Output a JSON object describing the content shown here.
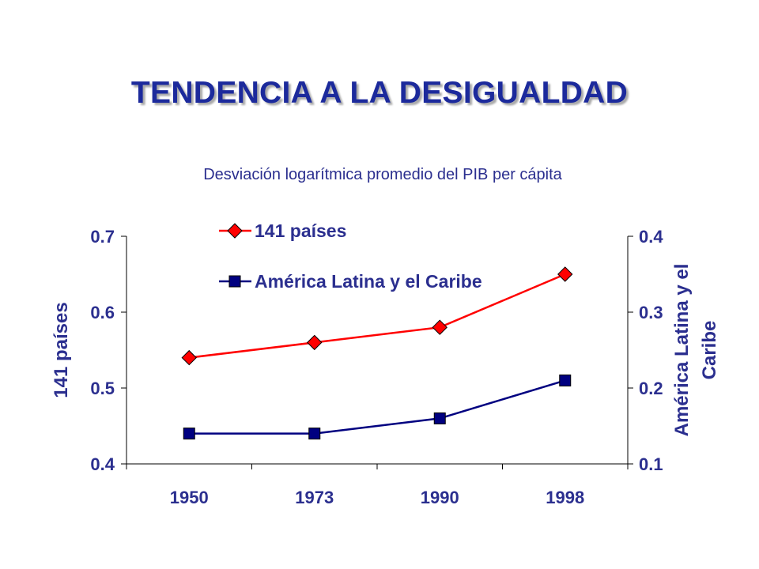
{
  "slide": {
    "title": "TENDENCIA A LA DESIGUALDAD"
  },
  "chart_data": {
    "type": "line",
    "subtitle": "Desviación logarítmica promedio del PIB per cápita",
    "categories": [
      "1950",
      "1973",
      "1990",
      "1998"
    ],
    "series": [
      {
        "name": "141 países",
        "axis": "left",
        "color": "#ff0000",
        "marker": "diamond",
        "values": [
          0.54,
          0.56,
          0.58,
          0.65
        ]
      },
      {
        "name": "América Latina y el Caribe",
        "axis": "right",
        "color": "#000080",
        "marker": "square",
        "values": [
          0.14,
          0.14,
          0.16,
          0.21
        ]
      }
    ],
    "y_left": {
      "label": "141 países",
      "ylim": [
        0.4,
        0.7
      ],
      "ticks": [
        "0.4",
        "0.5",
        "0.6",
        "0.7"
      ]
    },
    "y_right": {
      "label_lines": [
        "América Latina y el",
        "Caribe"
      ],
      "ylim": [
        0.1,
        0.4
      ],
      "ticks": [
        "0.1",
        "0.2",
        "0.3",
        "0.4"
      ]
    },
    "grid": false,
    "legend_position": "top-left"
  }
}
